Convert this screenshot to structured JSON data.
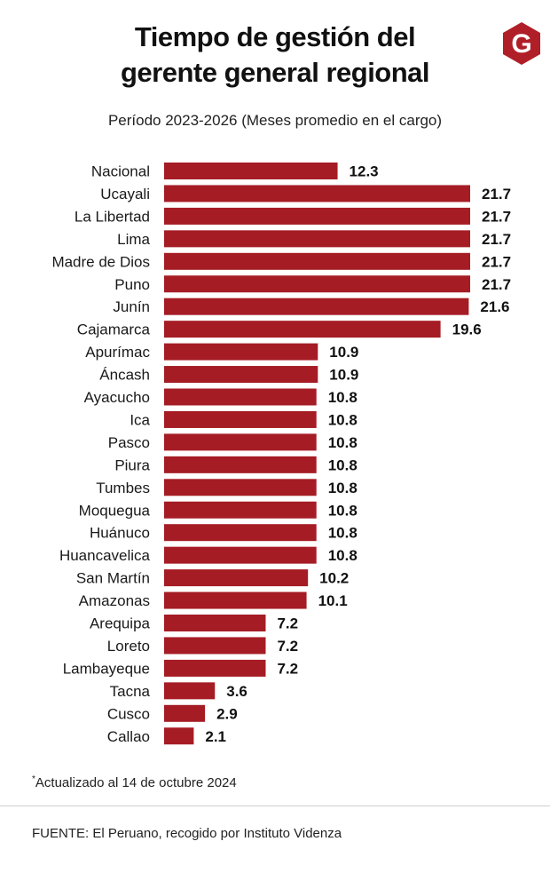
{
  "header": {
    "title_line1": "Tiempo de gestión del",
    "title_line2": "gerente general regional",
    "subtitle": "Período 2023-2026 (Meses promedio en el cargo)",
    "logo_letter": "G"
  },
  "colors": {
    "bar": "#a51c24",
    "logo": "#b01e28",
    "text": "#1a1a1a"
  },
  "chart_data": {
    "type": "bar",
    "orientation": "horizontal",
    "title": "Tiempo de gestión del gerente general regional",
    "subtitle": "Período 2023-2026 (Meses promedio en el cargo)",
    "xlabel": "",
    "ylabel": "",
    "xlim": [
      0,
      21.7
    ],
    "grid": false,
    "categories": [
      "Nacional",
      "Ucayali",
      "La Libertad",
      "Lima",
      "Madre de Dios",
      "Puno",
      "Junín",
      "Cajamarca",
      "Apurímac",
      "Áncash",
      "Ayacucho",
      "Ica",
      "Pasco",
      "Piura",
      "Tumbes",
      "Moquegua",
      "Huánuco",
      "Huancavelica",
      "San Martín",
      "Amazonas",
      "Arequipa",
      "Loreto",
      "Lambayeque",
      "Tacna",
      "Cusco",
      "Callao"
    ],
    "values": [
      12.3,
      21.7,
      21.7,
      21.7,
      21.7,
      21.7,
      21.6,
      19.6,
      10.9,
      10.9,
      10.8,
      10.8,
      10.8,
      10.8,
      10.8,
      10.8,
      10.8,
      10.8,
      10.2,
      10.1,
      7.2,
      7.2,
      7.2,
      3.6,
      2.9,
      2.1
    ]
  },
  "footer": {
    "note_mark": "*",
    "note": "Actualizado al 14 de octubre 2024",
    "source": "FUENTE: El Peruano, recogido por Instituto Videnza"
  }
}
